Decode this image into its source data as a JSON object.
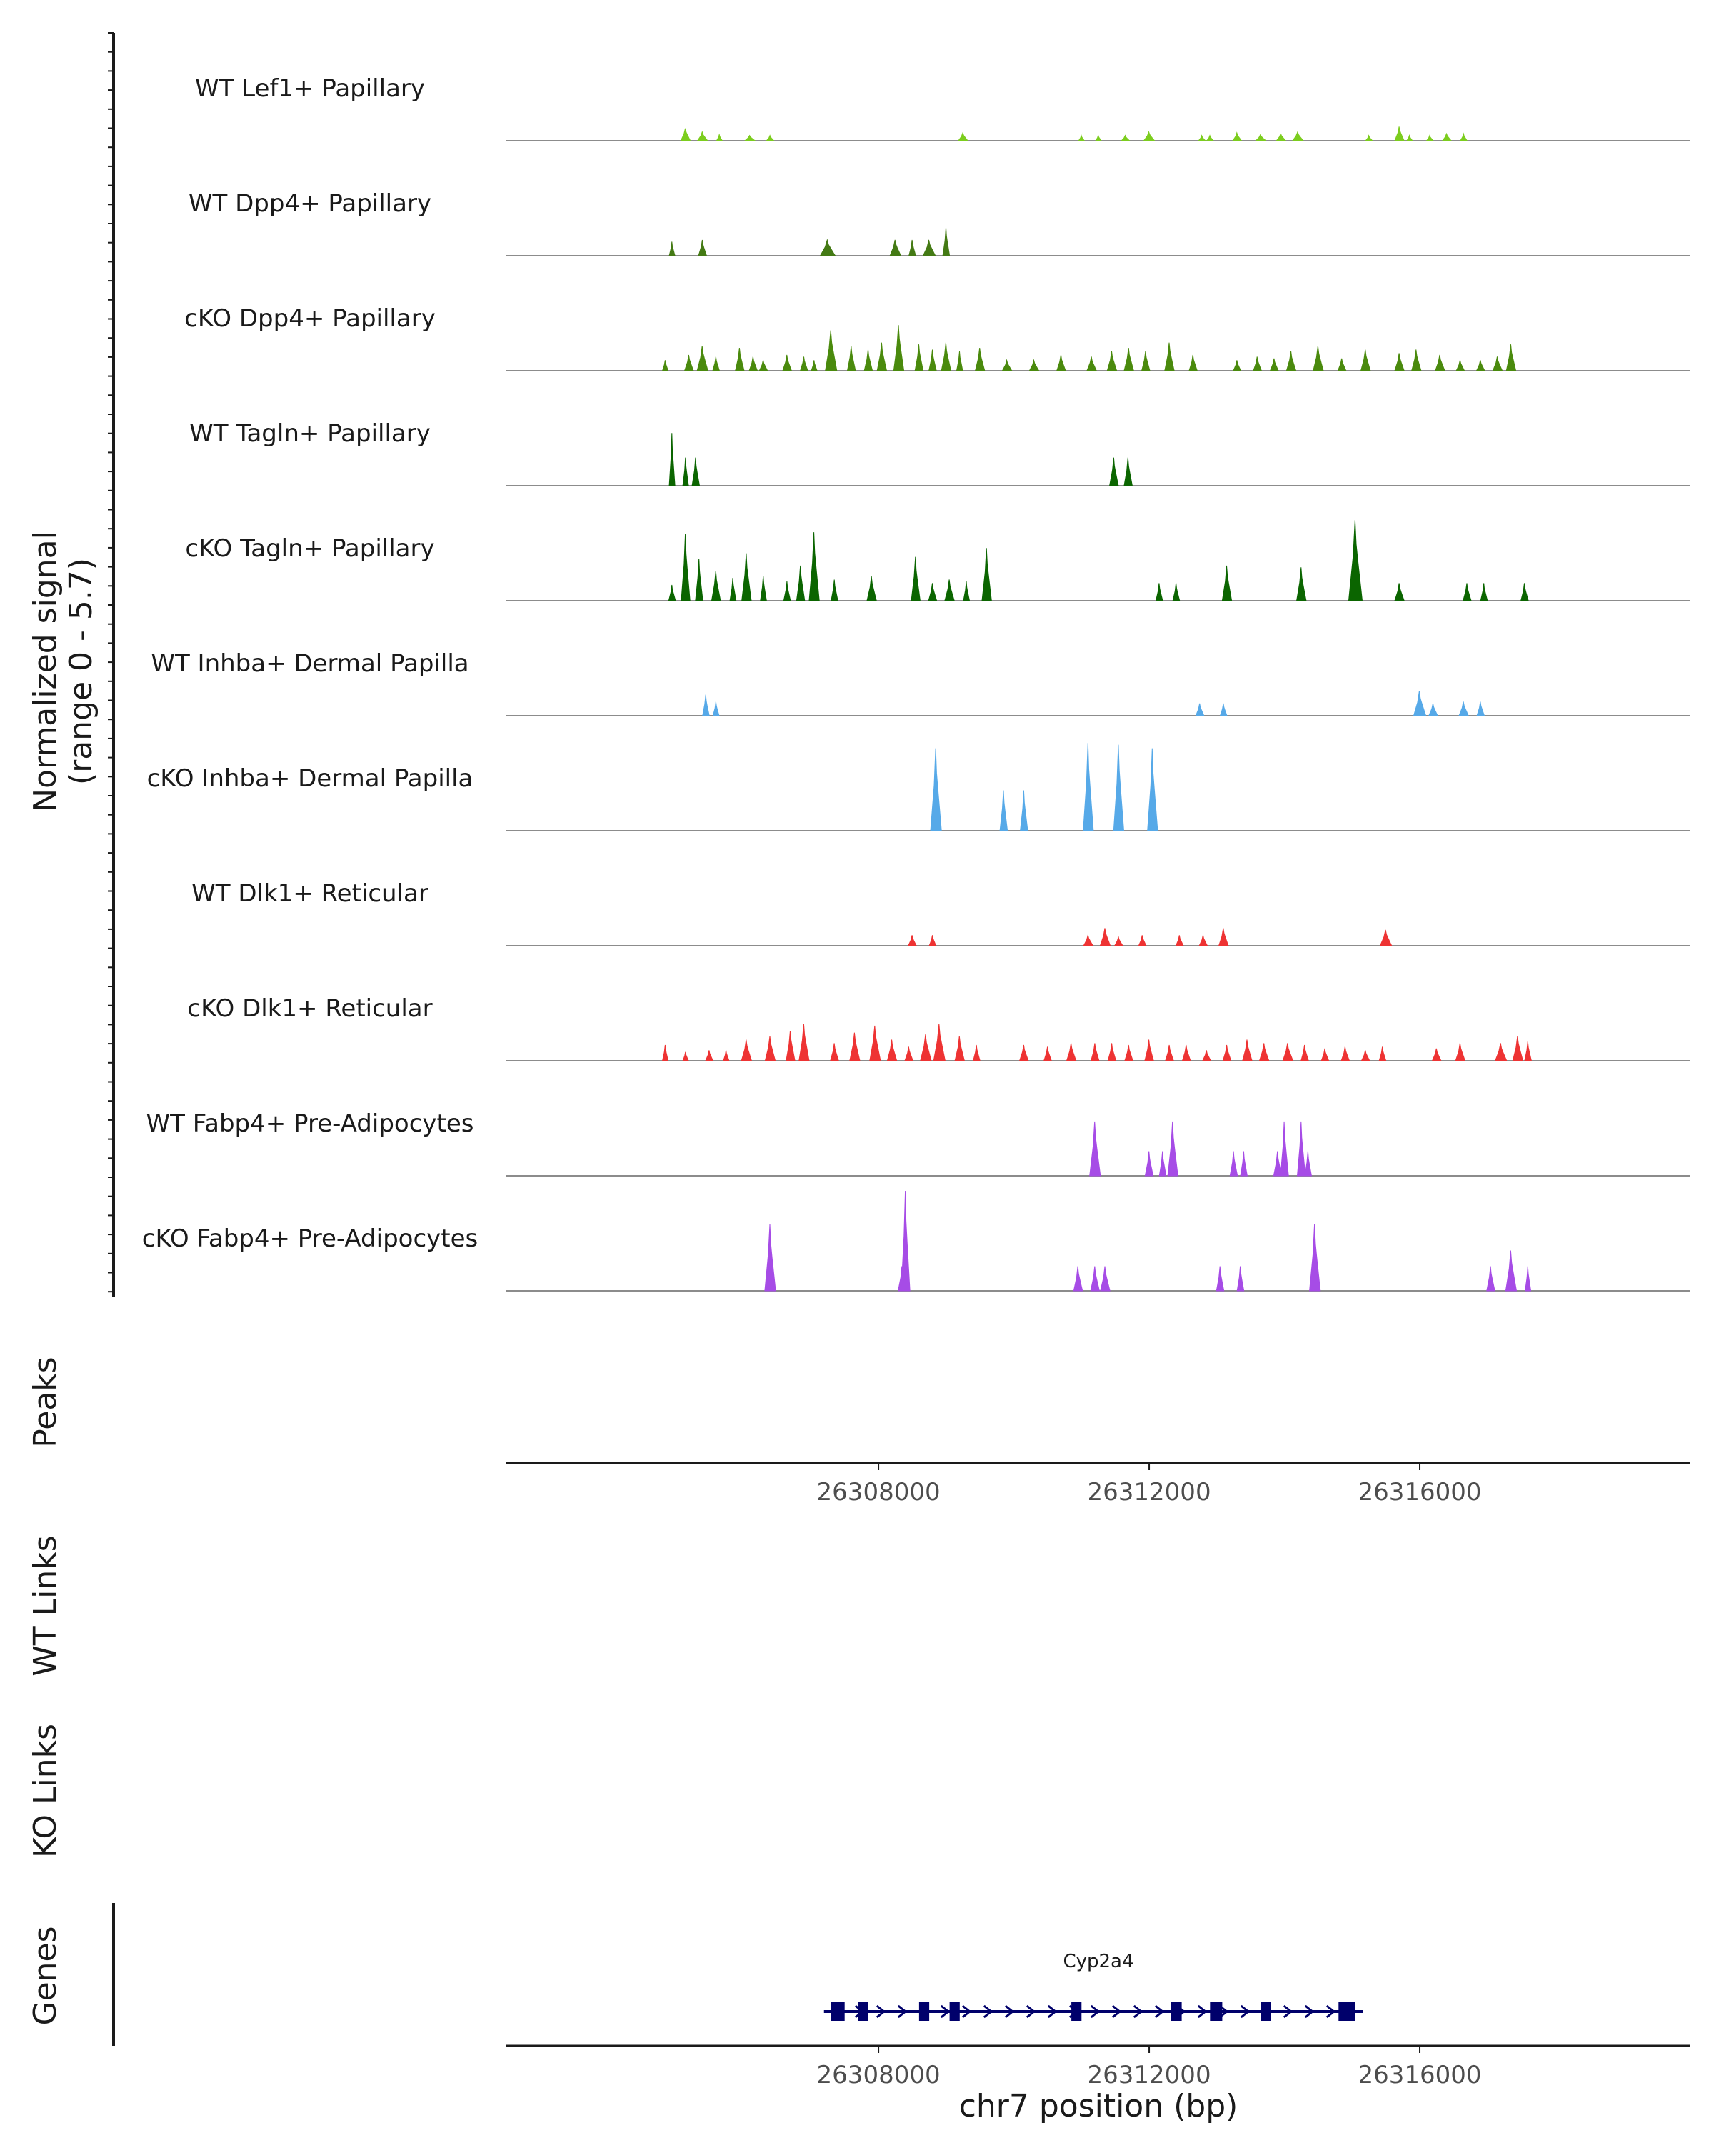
{
  "chart_data": {
    "type": "area",
    "chromosome": "chr7",
    "xlim": [
      26302500,
      26320000
    ],
    "ylim": [
      0,
      5.7
    ],
    "y_axis_label_line1": "Normalized signal",
    "y_axis_label_line2": "(range 0 - 5.7)",
    "x_axis_title": "chr7 position (bp)",
    "x_ticks": [
      26308000,
      26312000,
      26316000
    ],
    "x_tick_labels": [
      "26308000",
      "26312000",
      "26316000"
    ],
    "side_labels": {
      "peaks": "Peaks",
      "wt_links": "WT Links",
      "ko_links": "KO Links",
      "genes": "Genes"
    },
    "tracks": [
      {
        "name": "WT Lef1+ Papillary",
        "color": "#7CCD1E",
        "peaks": [
          [
            26305150,
            0.7,
            140
          ],
          [
            26305400,
            0.5,
            150
          ],
          [
            26305650,
            0.35,
            80
          ],
          [
            26306100,
            0.3,
            150
          ],
          [
            26306400,
            0.3,
            110
          ],
          [
            26309250,
            0.45,
            140
          ],
          [
            26311000,
            0.3,
            60
          ],
          [
            26311250,
            0.3,
            80
          ],
          [
            26311650,
            0.3,
            120
          ],
          [
            26312000,
            0.5,
            160
          ],
          [
            26312780,
            0.3,
            100
          ],
          [
            26312900,
            0.3,
            100
          ],
          [
            26313300,
            0.45,
            130
          ],
          [
            26313650,
            0.35,
            150
          ],
          [
            26313950,
            0.4,
            140
          ],
          [
            26314200,
            0.5,
            160
          ],
          [
            26315250,
            0.3,
            100
          ],
          [
            26315700,
            0.8,
            140
          ],
          [
            26315850,
            0.3,
            60
          ],
          [
            26316150,
            0.3,
            100
          ],
          [
            26316400,
            0.4,
            130
          ],
          [
            26316650,
            0.4,
            100
          ]
        ]
      },
      {
        "name": "WT Dpp4+ Papillary",
        "color": "#447A14",
        "peaks": [
          [
            26304950,
            0.8,
            50
          ],
          [
            26305400,
            0.9,
            120
          ],
          [
            26307250,
            0.9,
            220
          ],
          [
            26308250,
            0.9,
            160
          ],
          [
            26308500,
            0.9,
            100
          ],
          [
            26308750,
            0.9,
            180
          ],
          [
            26309000,
            1.6,
            100
          ]
        ]
      },
      {
        "name": "cKO Dpp4+ Papillary",
        "color": "#4A8A0D",
        "peaks": [
          [
            26304850,
            0.6,
            70
          ],
          [
            26305200,
            0.9,
            130
          ],
          [
            26305400,
            1.4,
            160
          ],
          [
            26305600,
            0.8,
            100
          ],
          [
            26305950,
            1.3,
            130
          ],
          [
            26306150,
            0.8,
            120
          ],
          [
            26306300,
            0.6,
            120
          ],
          [
            26306650,
            0.9,
            130
          ],
          [
            26306900,
            0.8,
            110
          ],
          [
            26307050,
            0.6,
            80
          ],
          [
            26307300,
            2.3,
            170
          ],
          [
            26307600,
            1.4,
            120
          ],
          [
            26307850,
            1.2,
            120
          ],
          [
            26308050,
            1.6,
            140
          ],
          [
            26308300,
            2.6,
            150
          ],
          [
            26308600,
            1.5,
            120
          ],
          [
            26308800,
            1.2,
            110
          ],
          [
            26309000,
            1.6,
            140
          ],
          [
            26309200,
            1.1,
            90
          ],
          [
            26309500,
            1.3,
            140
          ],
          [
            26309900,
            0.6,
            140
          ],
          [
            26310300,
            0.6,
            140
          ],
          [
            26310700,
            0.9,
            130
          ],
          [
            26311150,
            0.8,
            140
          ],
          [
            26311450,
            1.1,
            140
          ],
          [
            26311700,
            1.3,
            140
          ],
          [
            26311950,
            1.1,
            120
          ],
          [
            26312300,
            1.6,
            140
          ],
          [
            26312650,
            0.9,
            120
          ],
          [
            26313300,
            0.6,
            110
          ],
          [
            26313600,
            0.8,
            120
          ],
          [
            26313850,
            0.7,
            120
          ],
          [
            26314100,
            1.1,
            140
          ],
          [
            26314500,
            1.4,
            150
          ],
          [
            26314850,
            0.7,
            120
          ],
          [
            26315200,
            1.2,
            140
          ],
          [
            26315700,
            1.0,
            140
          ],
          [
            26315950,
            1.2,
            140
          ],
          [
            26316300,
            0.9,
            140
          ],
          [
            26316600,
            0.6,
            120
          ],
          [
            26316900,
            0.6,
            120
          ],
          [
            26317150,
            0.8,
            140
          ],
          [
            26317350,
            1.5,
            140
          ]
        ]
      },
      {
        "name": "WT Tagln+ Papillary",
        "color": "#0B6500",
        "peaks": [
          [
            26304950,
            3.0,
            70
          ],
          [
            26305150,
            1.6,
            80
          ],
          [
            26305300,
            1.6,
            110
          ],
          [
            26311480,
            1.6,
            130
          ],
          [
            26311690,
            1.6,
            120
          ]
        ]
      },
      {
        "name": "cKO Tagln+ Papillary",
        "color": "#0B6500",
        "peaks": [
          [
            26304950,
            0.9,
            100
          ],
          [
            26305150,
            3.8,
            130
          ],
          [
            26305350,
            2.4,
            110
          ],
          [
            26305600,
            1.7,
            130
          ],
          [
            26305850,
            1.3,
            90
          ],
          [
            26306050,
            2.7,
            140
          ],
          [
            26306300,
            1.4,
            90
          ],
          [
            26306650,
            1.1,
            100
          ],
          [
            26306850,
            2.0,
            120
          ],
          [
            26307050,
            3.9,
            150
          ],
          [
            26307350,
            1.2,
            100
          ],
          [
            26307900,
            1.4,
            140
          ],
          [
            26308550,
            2.5,
            130
          ],
          [
            26308800,
            1.0,
            120
          ],
          [
            26309050,
            1.2,
            140
          ],
          [
            26309300,
            1.1,
            90
          ],
          [
            26309600,
            3.0,
            140
          ],
          [
            26312150,
            1.0,
            100
          ],
          [
            26312400,
            1.0,
            100
          ],
          [
            26313150,
            2.0,
            140
          ],
          [
            26314250,
            1.9,
            140
          ],
          [
            26315050,
            4.6,
            200
          ],
          [
            26315700,
            1.0,
            140
          ],
          [
            26316700,
            1.0,
            120
          ],
          [
            26316950,
            1.0,
            100
          ],
          [
            26317550,
            1.0,
            110
          ]
        ]
      },
      {
        "name": "WT Inhba+ Dermal Papilla",
        "color": "#56A9E8",
        "peaks": [
          [
            26305450,
            1.2,
            100
          ],
          [
            26305600,
            0.8,
            90
          ],
          [
            26312750,
            0.7,
            120
          ],
          [
            26313100,
            0.7,
            100
          ],
          [
            26316000,
            1.4,
            180
          ],
          [
            26316200,
            0.7,
            130
          ],
          [
            26316650,
            0.8,
            140
          ],
          [
            26316900,
            0.8,
            110
          ]
        ]
      },
      {
        "name": "cKO Inhba+ Dermal Papilla",
        "color": "#56A9E8",
        "peaks": [
          [
            26308850,
            4.7,
            160
          ],
          [
            26309850,
            2.3,
            110
          ],
          [
            26310150,
            2.3,
            110
          ],
          [
            26311100,
            5.0,
            150
          ],
          [
            26311550,
            4.9,
            150
          ],
          [
            26312050,
            4.7,
            150
          ]
        ]
      },
      {
        "name": "WT Dlk1+ Reticular",
        "color": "#EE3333",
        "peaks": [
          [
            26308500,
            0.6,
            120
          ],
          [
            26308800,
            0.6,
            100
          ],
          [
            26311100,
            0.6,
            140
          ],
          [
            26311350,
            1.0,
            150
          ],
          [
            26311550,
            0.5,
            120
          ],
          [
            26311900,
            0.6,
            110
          ],
          [
            26312450,
            0.6,
            110
          ],
          [
            26312800,
            0.6,
            120
          ],
          [
            26313100,
            1.0,
            140
          ],
          [
            26315500,
            0.9,
            170
          ]
        ]
      },
      {
        "name": "cKO Dlk1+ Reticular",
        "color": "#EE3333",
        "peaks": [
          [
            26304850,
            0.9,
            70
          ],
          [
            26305150,
            0.5,
            80
          ],
          [
            26305500,
            0.6,
            110
          ],
          [
            26305750,
            0.6,
            80
          ],
          [
            26306050,
            1.2,
            150
          ],
          [
            26306400,
            1.4,
            150
          ],
          [
            26306700,
            1.7,
            130
          ],
          [
            26306900,
            2.1,
            150
          ],
          [
            26307350,
            1.0,
            120
          ],
          [
            26307650,
            1.6,
            150
          ],
          [
            26307950,
            2.0,
            160
          ],
          [
            26308200,
            1.2,
            140
          ],
          [
            26308450,
            0.8,
            120
          ],
          [
            26308700,
            1.5,
            160
          ],
          [
            26308900,
            2.1,
            170
          ],
          [
            26309200,
            1.4,
            140
          ],
          [
            26309450,
            0.9,
            100
          ],
          [
            26310150,
            0.9,
            130
          ],
          [
            26310500,
            0.8,
            110
          ],
          [
            26310850,
            1.0,
            140
          ],
          [
            26311200,
            1.0,
            120
          ],
          [
            26311450,
            1.0,
            120
          ],
          [
            26311700,
            0.9,
            120
          ],
          [
            26312000,
            1.2,
            130
          ],
          [
            26312300,
            0.9,
            120
          ],
          [
            26312550,
            0.9,
            120
          ],
          [
            26312850,
            0.6,
            120
          ],
          [
            26313150,
            0.9,
            120
          ],
          [
            26313450,
            1.2,
            140
          ],
          [
            26313700,
            1.0,
            140
          ],
          [
            26314050,
            1.0,
            150
          ],
          [
            26314300,
            0.9,
            110
          ],
          [
            26314600,
            0.7,
            110
          ],
          [
            26314900,
            0.8,
            120
          ],
          [
            26315200,
            0.6,
            120
          ],
          [
            26315450,
            0.8,
            100
          ],
          [
            26316250,
            0.7,
            130
          ],
          [
            26316600,
            1.0,
            140
          ],
          [
            26317200,
            1.0,
            170
          ],
          [
            26317450,
            1.4,
            150
          ],
          [
            26317600,
            1.1,
            100
          ]
        ]
      },
      {
        "name": "WT Fabp4+ Pre-Adipocytes",
        "color": "#A64CE6",
        "peaks": [
          [
            26311200,
            3.1,
            160
          ],
          [
            26312000,
            1.4,
            120
          ],
          [
            26312200,
            1.4,
            100
          ],
          [
            26312350,
            3.1,
            150
          ],
          [
            26313250,
            1.4,
            110
          ],
          [
            26313400,
            1.4,
            100
          ],
          [
            26313900,
            1.4,
            120
          ],
          [
            26314000,
            3.1,
            120
          ],
          [
            26314250,
            3.1,
            120
          ],
          [
            26314350,
            1.4,
            100
          ]
        ]
      },
      {
        "name": "cKO Fabp4+ Pre-Adipocytes",
        "color": "#A64CE6",
        "peaks": [
          [
            26306400,
            3.8,
            160
          ],
          [
            26308350,
            1.4,
            120
          ],
          [
            26308400,
            5.7,
            130
          ],
          [
            26310950,
            1.4,
            130
          ],
          [
            26311200,
            1.4,
            130
          ],
          [
            26311350,
            1.4,
            140
          ],
          [
            26313050,
            1.4,
            110
          ],
          [
            26313350,
            1.4,
            100
          ],
          [
            26314450,
            3.8,
            160
          ],
          [
            26317050,
            1.4,
            120
          ],
          [
            26317350,
            2.3,
            160
          ],
          [
            26317600,
            1.4,
            80
          ]
        ]
      }
    ],
    "gene": {
      "name": "Cyp2a4",
      "color": "#00006B",
      "start": 26307300,
      "end": 26315050,
      "strand": "+",
      "exons": [
        [
          26307300,
          26307500
        ],
        [
          26307700,
          26307850
        ],
        [
          26308600,
          26308750
        ],
        [
          26309050,
          26309200
        ],
        [
          26310850,
          26311000
        ],
        [
          26312320,
          26312480
        ],
        [
          26312900,
          26313080
        ],
        [
          26313650,
          26313780
        ],
        [
          26314800,
          26315050
        ]
      ]
    }
  }
}
